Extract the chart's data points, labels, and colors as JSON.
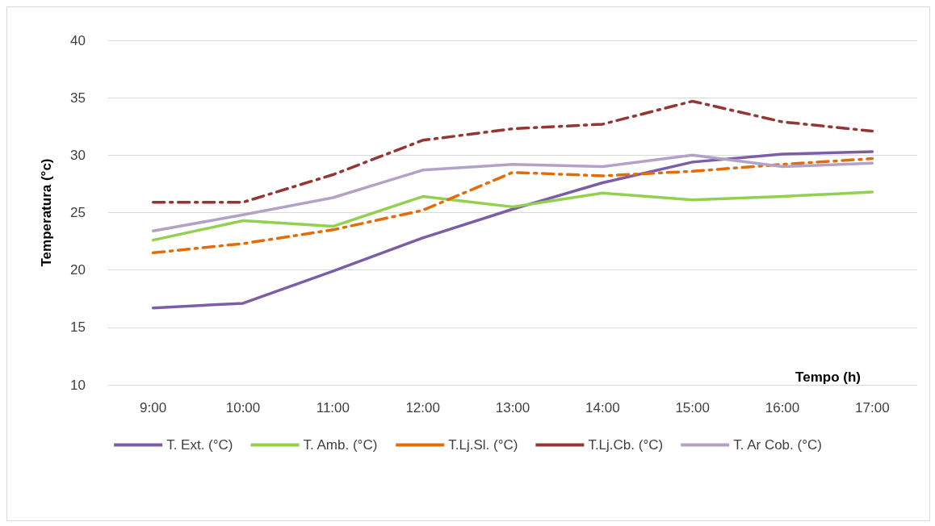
{
  "chart_data": {
    "type": "line",
    "xlabel": "Tempo (h)",
    "ylabel": "Temperatura (°c)",
    "categories": [
      "9:00",
      "10:00",
      "11:00",
      "12:00",
      "13:00",
      "14:00",
      "15:00",
      "16:00",
      "17:00"
    ],
    "series": [
      {
        "name": "T. Ext. (°C)",
        "color": "#7b5ea7",
        "line_style": "solid",
        "values": [
          16.7,
          17.1,
          19.9,
          22.8,
          25.3,
          27.6,
          29.4,
          30.1,
          30.3
        ]
      },
      {
        "name": "T. Amb. (°C)",
        "color": "#92d050",
        "line_style": "solid",
        "values": [
          22.6,
          24.3,
          23.8,
          26.4,
          25.5,
          26.7,
          26.1,
          26.4,
          26.8
        ]
      },
      {
        "name": "T.Lj.Sl. (°C)",
        "color": "#e36c09",
        "line_style": "dashed",
        "values": [
          21.5,
          22.3,
          23.5,
          25.2,
          28.5,
          28.2,
          28.6,
          29.2,
          29.7
        ]
      },
      {
        "name": "T.Lj.Cb. (°C)",
        "color": "#943634",
        "line_style": "dashed",
        "values": [
          25.9,
          25.9,
          28.3,
          31.3,
          32.3,
          32.7,
          34.7,
          32.9,
          32.1
        ]
      },
      {
        "name": "T. Ar Cob. (°C)",
        "color": "#b3a2c7",
        "line_style": "solid",
        "values": [
          23.4,
          24.8,
          26.3,
          28.7,
          29.2,
          29.0,
          30.0,
          29.0,
          29.3
        ]
      }
    ],
    "ylim": [
      10,
      40
    ],
    "yticks": [
      10,
      15,
      20,
      25,
      30,
      35,
      40
    ],
    "grid": "y",
    "legend": "bottom",
    "marker": "none"
  }
}
